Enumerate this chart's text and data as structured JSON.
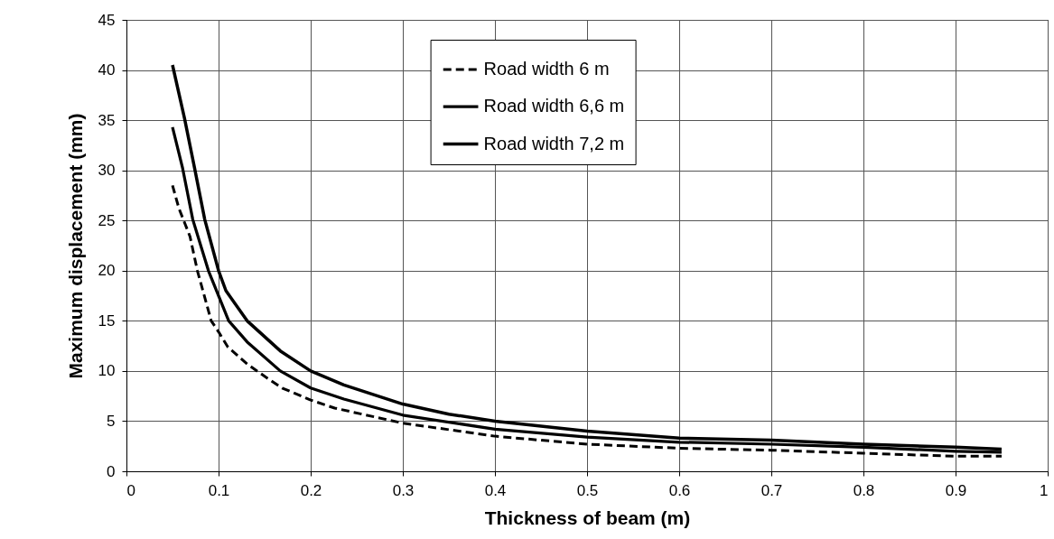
{
  "chart_data": {
    "type": "line",
    "xlabel": "Thickness of beam (m)",
    "ylabel": "Maximum displacement (mm)",
    "xlim": [
      0,
      1
    ],
    "xticks": [
      0,
      0.1,
      0.2,
      0.3,
      0.4,
      0.5,
      0.6,
      0.7,
      0.8,
      0.9,
      1
    ],
    "ylim": [
      0,
      45
    ],
    "yticks": [
      0,
      5,
      10,
      15,
      20,
      25,
      30,
      35,
      40,
      45
    ],
    "grid": true,
    "legend": "top",
    "marker": "none",
    "series": [
      {
        "name": "Road width 6 m",
        "color": "#000000",
        "line_style": "dashed",
        "x": [
          0.05,
          0.057,
          0.069,
          0.077,
          0.092,
          0.1,
          0.11,
          0.131,
          0.151,
          0.169,
          0.2,
          0.226,
          0.3,
          0.4,
          0.5,
          0.6,
          0.7,
          0.8,
          0.9,
          0.95
        ],
        "values": [
          28.5,
          26.2,
          23.4,
          20.0,
          15.0,
          13.9,
          12.4,
          10.7,
          9.4,
          8.3,
          7.1,
          6.3,
          4.8,
          3.5,
          2.7,
          2.3,
          2.1,
          1.8,
          1.5,
          1.5
        ]
      },
      {
        "name": "Road width 6,6 m",
        "color": "#000000",
        "line_style": "solid",
        "x": [
          0.05,
          0.061,
          0.072,
          0.089,
          0.111,
          0.131,
          0.167,
          0.2,
          0.236,
          0.3,
          0.4,
          0.5,
          0.6,
          0.7,
          0.8,
          0.9,
          0.95
        ],
        "values": [
          34.3,
          30.2,
          25.1,
          20.0,
          15.0,
          12.9,
          10.0,
          8.3,
          7.2,
          5.6,
          4.2,
          3.4,
          2.9,
          2.7,
          2.4,
          2.0,
          1.9
        ]
      },
      {
        "name": "Road width 7,2 m",
        "color": "#000000",
        "line_style": "solid",
        "x": [
          0.05,
          0.063,
          0.074,
          0.085,
          0.1,
          0.108,
          0.131,
          0.167,
          0.2,
          0.236,
          0.3,
          0.35,
          0.4,
          0.5,
          0.6,
          0.7,
          0.8,
          0.9,
          0.95
        ],
        "values": [
          40.5,
          35.2,
          30.2,
          25.1,
          20.0,
          18.0,
          15.0,
          12.0,
          10.0,
          8.6,
          6.7,
          5.7,
          5.0,
          4.0,
          3.3,
          3.1,
          2.7,
          2.4,
          2.2
        ]
      }
    ]
  }
}
